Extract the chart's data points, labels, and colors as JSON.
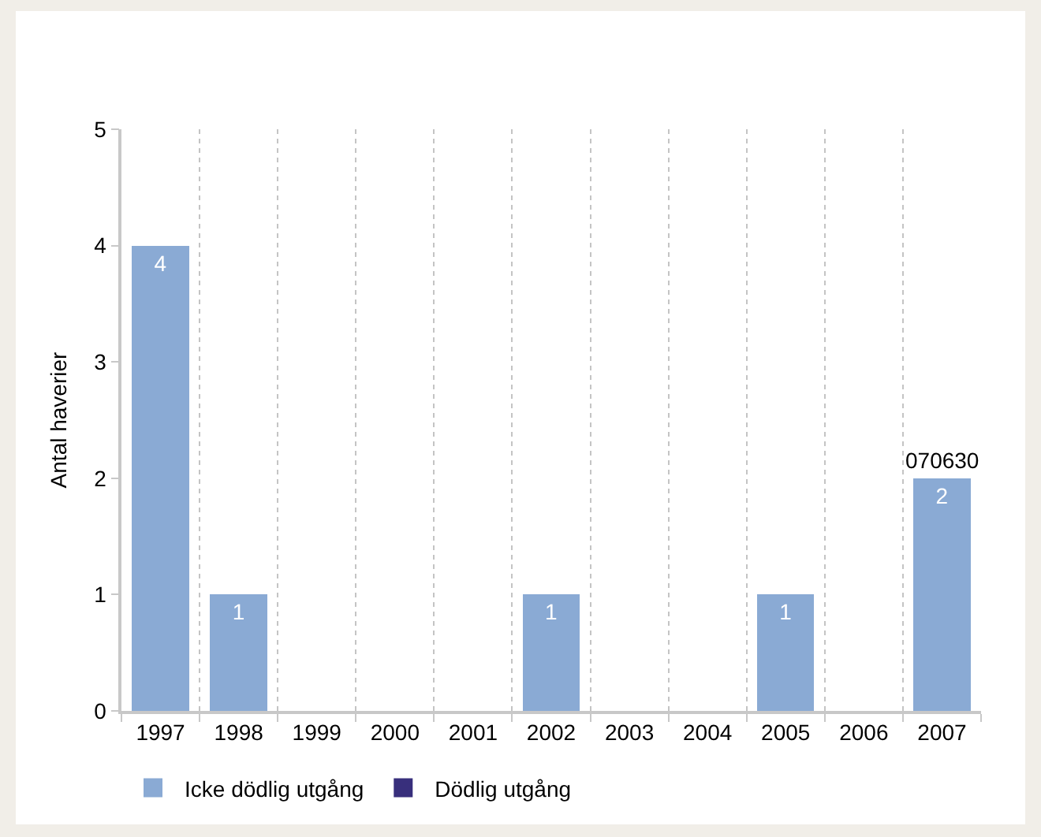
{
  "chart_data": {
    "type": "bar",
    "stacked": true,
    "ylabel": "Antal haverier",
    "categories": [
      "1997",
      "1998",
      "1999",
      "2000",
      "2001",
      "2002",
      "2003",
      "2004",
      "2005",
      "2006",
      "2007"
    ],
    "series": [
      {
        "name": "Icke dödlig utgång",
        "color": "#8aaad4",
        "values": [
          4,
          1,
          0,
          0,
          0,
          1,
          0,
          0,
          1,
          0,
          2
        ],
        "value_labels": [
          "4",
          "1",
          null,
          null,
          null,
          "1",
          null,
          null,
          "1",
          null,
          "2"
        ]
      },
      {
        "name": "Dödlig utgång",
        "color": "#382f7c",
        "values": [
          0,
          0,
          0,
          0,
          0,
          0,
          0,
          0,
          0,
          0,
          0
        ]
      }
    ],
    "ylim": [
      0,
      5
    ],
    "yticks": [
      0,
      1,
      2,
      3,
      4,
      5
    ],
    "grid": "x",
    "legend": "bottom",
    "annotations": [
      {
        "text": "070630",
        "x": "2007",
        "y": 2
      }
    ]
  }
}
